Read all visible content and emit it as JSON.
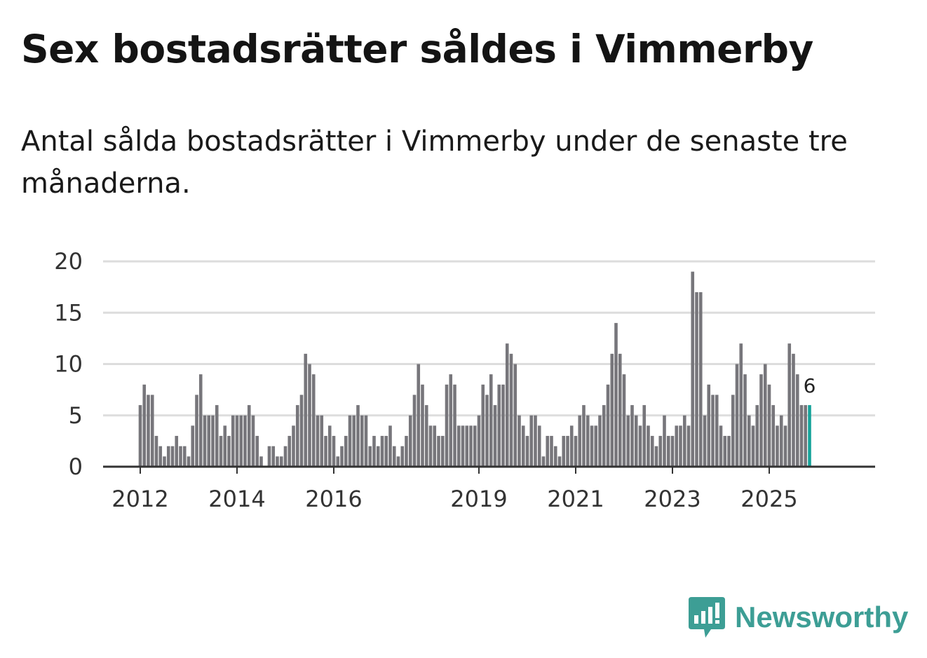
{
  "title": "Sex bostadsrätter såldes i Vimmerby",
  "subtitle": "Antal sålda bostadsrätter i Vimmerby under de senaste tre månaderna.",
  "brand": {
    "name": "Newsworthy",
    "color": "#3d9e95"
  },
  "colors": {
    "bar": "#77767b",
    "highlight": "#16a39a",
    "grid": "#dddddd",
    "axis": "#333333"
  },
  "chart_data": {
    "type": "bar",
    "title": "Sex bostadsrätter såldes i Vimmerby",
    "xlabel": "",
    "ylabel": "",
    "ylim": [
      0,
      20
    ],
    "yticks": [
      0,
      5,
      10,
      15,
      20
    ],
    "grid": true,
    "start": {
      "year": 2012,
      "month": 1
    },
    "x_tick_labels": [
      "2012",
      "2014",
      "2016",
      "2019",
      "2021",
      "2023",
      "2025"
    ],
    "highlight_label": "6",
    "values": [
      6,
      8,
      7,
      7,
      3,
      2,
      1,
      2,
      2,
      3,
      2,
      2,
      1,
      4,
      7,
      9,
      5,
      5,
      5,
      6,
      3,
      4,
      3,
      5,
      5,
      5,
      5,
      6,
      5,
      3,
      1,
      0,
      2,
      2,
      1,
      1,
      2,
      3,
      4,
      6,
      7,
      11,
      10,
      9,
      5,
      5,
      3,
      4,
      3,
      1,
      2,
      3,
      5,
      5,
      6,
      5,
      5,
      2,
      3,
      2,
      3,
      3,
      4,
      2,
      1,
      2,
      3,
      5,
      7,
      10,
      8,
      6,
      4,
      4,
      3,
      3,
      8,
      9,
      8,
      4,
      4,
      4,
      4,
      4,
      5,
      8,
      7,
      9,
      6,
      8,
      8,
      12,
      11,
      10,
      5,
      4,
      3,
      5,
      5,
      4,
      1,
      3,
      3,
      2,
      1,
      3,
      3,
      4,
      3,
      5,
      6,
      5,
      4,
      4,
      5,
      6,
      8,
      11,
      14,
      11,
      9,
      5,
      6,
      5,
      4,
      6,
      4,
      3,
      2,
      3,
      5,
      3,
      3,
      4,
      4,
      5,
      4,
      19,
      17,
      17,
      5,
      8,
      7,
      7,
      4,
      3,
      3,
      7,
      10,
      12,
      9,
      5,
      4,
      6,
      9,
      10,
      8,
      6,
      4,
      5,
      4,
      12,
      11,
      9,
      6,
      6,
      6
    ]
  }
}
